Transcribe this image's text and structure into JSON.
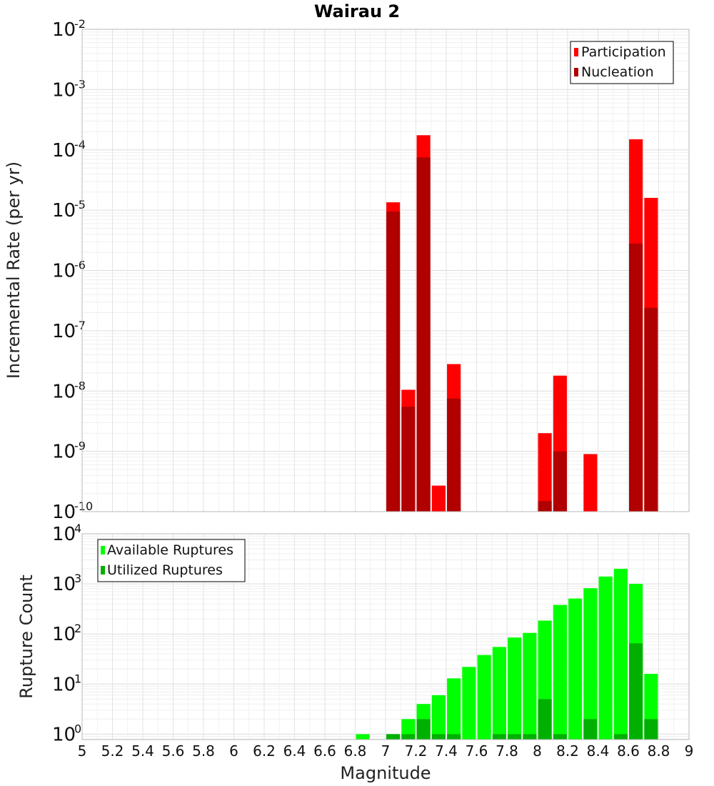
{
  "chart_data": [
    {
      "type": "bar",
      "title": "Wairau 2",
      "xlabel": "",
      "ylabel": "Incremental Rate (per yr)",
      "yscale": "log",
      "ylim": [
        1e-10,
        0.01
      ],
      "xlim": [
        5,
        9
      ],
      "grid": true,
      "legend_position": "top-right",
      "y_ticks": [
        {
          "base": "10",
          "exp": "-2"
        },
        {
          "base": "10",
          "exp": "-3"
        },
        {
          "base": "10",
          "exp": "-4"
        },
        {
          "base": "10",
          "exp": "-5"
        },
        {
          "base": "10",
          "exp": "-6"
        },
        {
          "base": "10",
          "exp": "-7"
        },
        {
          "base": "10",
          "exp": "-8"
        },
        {
          "base": "10",
          "exp": "-9"
        },
        {
          "base": "10",
          "exp": "-10"
        }
      ],
      "bar_width": 0.09,
      "series": [
        {
          "name": "Participation",
          "color": "#ff0000",
          "x": [
            7.05,
            7.15,
            7.25,
            7.35,
            7.45,
            8.05,
            8.15,
            8.35,
            8.65,
            8.75
          ],
          "values": [
            1.35e-05,
            1.05e-08,
            0.000175,
            2.7e-10,
            2.8e-08,
            2e-09,
            1.8e-08,
            9e-10,
            0.00015,
            1.6e-05
          ]
        },
        {
          "name": "Nucleation",
          "color": "#b00000",
          "x": [
            7.05,
            7.15,
            7.25,
            7.45,
            8.05,
            8.15,
            8.65,
            8.75
          ],
          "values": [
            9.5e-06,
            5.5e-09,
            7.5e-05,
            7.5e-09,
            1.5e-10,
            1e-09,
            2.8e-06,
            2.4e-07
          ]
        }
      ]
    },
    {
      "type": "bar",
      "title": "",
      "xlabel": "Magnitude",
      "ylabel": "Rupture Count",
      "yscale": "log",
      "ylim": [
        0.78,
        10000
      ],
      "xlim": [
        5,
        9
      ],
      "grid": true,
      "legend_position": "top-left",
      "x_tick_labels": [
        "5",
        "5.2",
        "5.4",
        "5.6",
        "5.8",
        "6",
        "6.2",
        "6.4",
        "6.6",
        "6.8",
        "7",
        "7.2",
        "7.4",
        "7.6",
        "7.8",
        "8",
        "8.2",
        "8.4",
        "8.6",
        "8.8",
        "9"
      ],
      "y_ticks": [
        {
          "base": "10",
          "exp": "4"
        },
        {
          "base": "10",
          "exp": "3"
        },
        {
          "base": "10",
          "exp": "2"
        },
        {
          "base": "10",
          "exp": "1"
        },
        {
          "base": "10",
          "exp": "0"
        }
      ],
      "bar_width": 0.09,
      "series": [
        {
          "name": "Available Ruptures",
          "color": "#00ff00",
          "x": [
            6.85,
            7.05,
            7.15,
            7.25,
            7.35,
            7.45,
            7.55,
            7.65,
            7.75,
            7.85,
            7.95,
            8.05,
            8.15,
            8.25,
            8.35,
            8.45,
            8.55,
            8.65,
            8.75
          ],
          "values": [
            1,
            1,
            2,
            4,
            6,
            13,
            22,
            38,
            55,
            85,
            105,
            185,
            380,
            510,
            820,
            1400,
            2000,
            1000,
            16
          ]
        },
        {
          "name": "Utilized Ruptures",
          "color": "#00b000",
          "x": [
            7.05,
            7.15,
            7.25,
            7.35,
            7.45,
            7.75,
            7.85,
            7.95,
            8.05,
            8.15,
            8.35,
            8.55,
            8.65,
            8.75
          ],
          "values": [
            1,
            1,
            2,
            1,
            1,
            1,
            1,
            1,
            5,
            1,
            2,
            1,
            65,
            2
          ]
        }
      ]
    }
  ]
}
